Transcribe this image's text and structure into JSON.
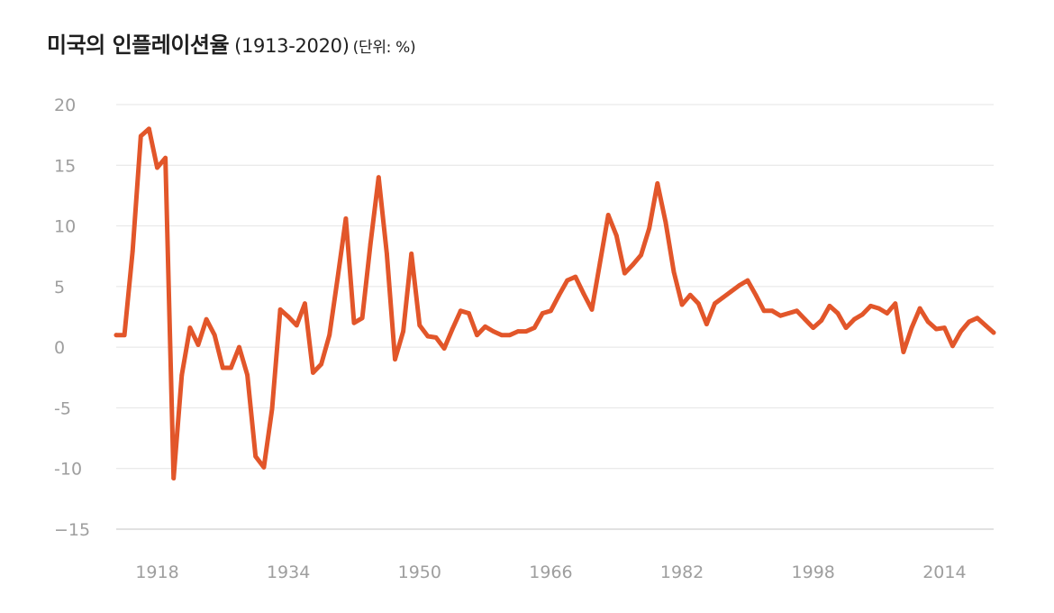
{
  "chart_data": {
    "type": "line",
    "title": "미국의 인플레이션율",
    "title_years": "(1913-2020)",
    "unit_label": "(단위: %)",
    "xlabel": "",
    "ylabel": "",
    "xlim": [
      1913,
      2020
    ],
    "ylim": [
      -15,
      20
    ],
    "yticks": [
      20,
      15,
      10,
      5,
      0,
      -5,
      -10,
      -15
    ],
    "ytick_labels": [
      "20",
      "15",
      "10",
      "5",
      "0",
      "-5",
      "-10",
      "−15"
    ],
    "xticks": [
      1918,
      1934,
      1950,
      1966,
      1982,
      1998,
      2014
    ],
    "xtick_labels": [
      "1918",
      "1934",
      "1950",
      "1966",
      "1982",
      "1998",
      "2014"
    ],
    "grid": true,
    "legend": "none",
    "line_color": "#e2562a",
    "series": [
      {
        "x": [
          1913,
          1914,
          1915,
          1916,
          1917,
          1918,
          1919,
          1920,
          1921,
          1922,
          1923,
          1924,
          1925,
          1926,
          1927,
          1928,
          1929,
          1930,
          1931,
          1932,
          1933,
          1934,
          1935,
          1936,
          1937,
          1938,
          1939,
          1940,
          1941,
          1942,
          1943,
          1944,
          1945,
          1946,
          1947,
          1948,
          1949,
          1950,
          1951,
          1952,
          1953,
          1954,
          1955,
          1956,
          1957,
          1958,
          1959,
          1960,
          1961,
          1962,
          1963,
          1964,
          1965,
          1966,
          1967,
          1968,
          1969,
          1970,
          1971,
          1972,
          1973,
          1974,
          1975,
          1976,
          1977,
          1978,
          1979,
          1980,
          1981,
          1982,
          1983,
          1984,
          1985,
          1986,
          1987,
          1988,
          1989,
          1990,
          1991,
          1992,
          1993,
          1994,
          1995,
          1996,
          1997,
          1998,
          1999,
          2000,
          2001,
          2002,
          2003,
          2004,
          2005,
          2006,
          2007,
          2008,
          2009,
          2010,
          2011,
          2012,
          2013,
          2014,
          2015,
          2016,
          2017,
          2018,
          2019,
          2020
        ],
        "values": [
          1.0,
          1.0,
          7.9,
          17.4,
          18.0,
          14.8,
          15.6,
          -10.8,
          -2.3,
          1.6,
          0.2,
          2.3,
          1.0,
          -1.7,
          -1.7,
          0.0,
          -2.3,
          -9.0,
          -9.9,
          -5.1,
          3.1,
          2.5,
          1.8,
          3.6,
          -2.1,
          -1.4,
          1.0,
          5.7,
          10.6,
          2.0,
          2.4,
          8.5,
          14.0,
          7.7,
          -1.0,
          1.3,
          7.7,
          1.8,
          0.9,
          0.8,
          -0.1,
          1.5,
          3.0,
          2.8,
          1.0,
          1.7,
          1.3,
          1.0,
          1.0,
          1.3,
          1.3,
          1.6,
          2.8,
          3.0,
          4.3,
          5.5,
          5.8,
          4.4,
          3.1,
          7.0,
          10.9,
          9.2,
          6.1,
          6.8,
          7.6,
          9.8,
          13.5,
          10.3,
          6.2,
          3.5,
          4.3,
          3.6,
          1.9,
          3.6,
          4.1,
          4.6,
          5.1,
          5.5,
          4.3,
          3.0,
          3.0,
          2.6,
          2.8,
          3.0,
          2.3,
          1.6,
          2.2,
          3.4,
          2.8,
          1.6,
          2.3,
          2.7,
          3.4,
          3.2,
          2.8,
          3.6,
          -0.4,
          1.6,
          3.2,
          2.1,
          1.5,
          1.6,
          0.1,
          1.3,
          2.1,
          2.4,
          1.8,
          1.2
        ]
      }
    ]
  }
}
